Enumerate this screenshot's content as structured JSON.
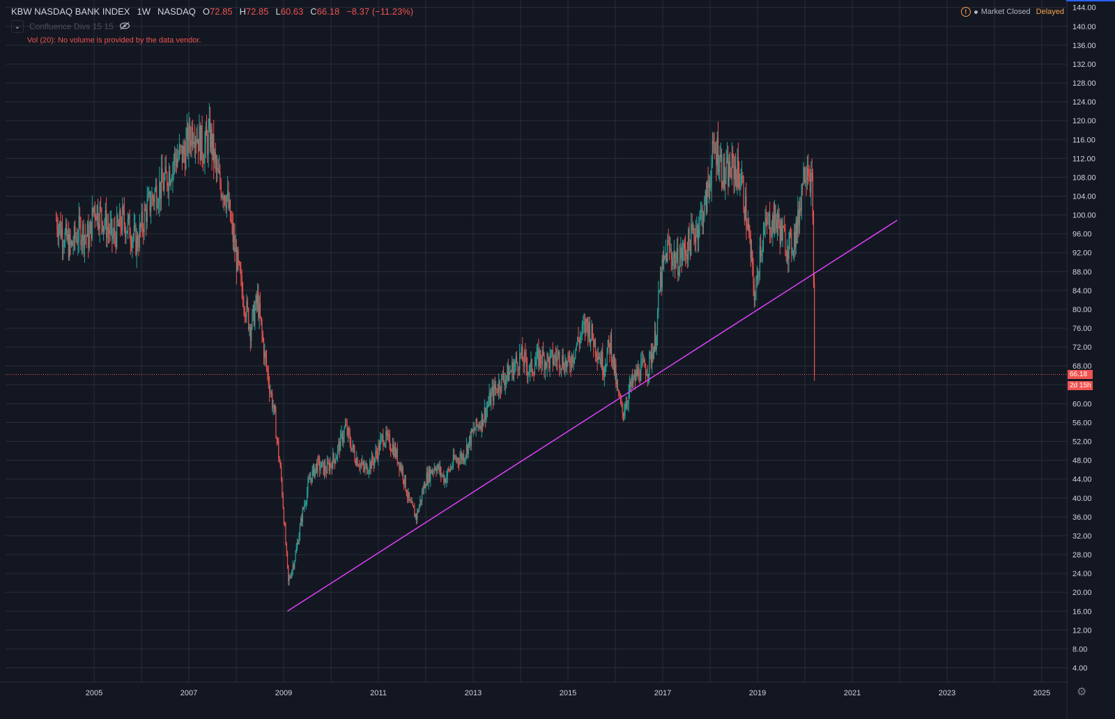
{
  "header": {
    "symbol": "KBW NASDAQ BANK INDEX",
    "interval": "1W",
    "exchange": "NASDAQ",
    "open_label": "O",
    "open": "72.85",
    "high_label": "H",
    "high": "72.85",
    "low_label": "L",
    "low": "60.63",
    "close_label": "C",
    "close": "66.18",
    "change": "−8.37 (−11.23%)"
  },
  "indicator": {
    "name": "Confluence Divs 15 15",
    "toggle_icon": "chevron-down-icon",
    "visibility_icon": "eye-off-icon"
  },
  "volume_message": "Vol (20): No volume is provided by the data vendor.",
  "market_status": {
    "warning_icon": "warning-icon",
    "status": "Market Closed",
    "delay": "Delayed"
  },
  "price_tag": {
    "value": "66.18",
    "countdown": "2d 15h"
  },
  "colors": {
    "background": "#131722",
    "grid": "#2a2e39",
    "up": "#26a69a",
    "down": "#ef5350",
    "trendline": "#e040fb",
    "text": "#d1d4dc"
  },
  "chart_data": {
    "type": "candlestick",
    "title": "KBW NASDAQ BANK INDEX",
    "timeframe": "1W",
    "x_ticks": [
      "2005",
      "2007",
      "2009",
      "2011",
      "2013",
      "2015",
      "2017",
      "2019",
      "2021",
      "2023",
      "2025"
    ],
    "y_ticks": [
      "4.00",
      "8.00",
      "12.00",
      "16.00",
      "20.00",
      "24.00",
      "28.00",
      "32.00",
      "36.00",
      "40.00",
      "44.00",
      "48.00",
      "52.00",
      "56.00",
      "60.00",
      "64.00",
      "68.00",
      "72.00",
      "76.00",
      "80.00",
      "84.00",
      "88.00",
      "92.00",
      "96.00",
      "100.00",
      "104.00",
      "108.00",
      "112.00",
      "116.00",
      "120.00",
      "124.00",
      "128.00",
      "132.00",
      "136.00",
      "140.00",
      "144.00"
    ],
    "ylim": [
      0,
      145
    ],
    "xlim": [
      2004.0,
      2025.7
    ],
    "price_path": [
      [
        2004.2,
        99
      ],
      [
        2004.35,
        96
      ],
      [
        2004.5,
        93
      ],
      [
        2004.7,
        97
      ],
      [
        2004.9,
        95
      ],
      [
        2005.0,
        102
      ],
      [
        2005.2,
        99
      ],
      [
        2005.4,
        95
      ],
      [
        2005.6,
        99
      ],
      [
        2005.75,
        97
      ],
      [
        2005.9,
        94
      ],
      [
        2006.1,
        101
      ],
      [
        2006.3,
        105
      ],
      [
        2006.5,
        107
      ],
      [
        2006.7,
        112
      ],
      [
        2006.9,
        113
      ],
      [
        2007.1,
        119
      ],
      [
        2007.3,
        114
      ],
      [
        2007.45,
        117
      ],
      [
        2007.6,
        108
      ],
      [
        2007.8,
        104
      ],
      [
        2007.95,
        94
      ],
      [
        2008.1,
        85
      ],
      [
        2008.3,
        76
      ],
      [
        2008.45,
        82
      ],
      [
        2008.6,
        70
      ],
      [
        2008.8,
        58
      ],
      [
        2008.95,
        44
      ],
      [
        2009.1,
        22
      ],
      [
        2009.25,
        28
      ],
      [
        2009.4,
        37
      ],
      [
        2009.55,
        44
      ],
      [
        2009.7,
        47
      ],
      [
        2009.9,
        46
      ],
      [
        2010.1,
        49
      ],
      [
        2010.3,
        55
      ],
      [
        2010.5,
        49
      ],
      [
        2010.7,
        46
      ],
      [
        2010.9,
        48
      ],
      [
        2011.1,
        53
      ],
      [
        2011.3,
        51
      ],
      [
        2011.5,
        46
      ],
      [
        2011.65,
        39
      ],
      [
        2011.8,
        36
      ],
      [
        2012.0,
        44
      ],
      [
        2012.2,
        47
      ],
      [
        2012.4,
        44
      ],
      [
        2012.6,
        48
      ],
      [
        2012.8,
        49
      ],
      [
        2013.0,
        54
      ],
      [
        2013.2,
        57
      ],
      [
        2013.4,
        62
      ],
      [
        2013.6,
        65
      ],
      [
        2013.8,
        67
      ],
      [
        2014.0,
        70
      ],
      [
        2014.2,
        67
      ],
      [
        2014.4,
        70
      ],
      [
        2014.6,
        69
      ],
      [
        2014.8,
        70
      ],
      [
        2015.0,
        68
      ],
      [
        2015.2,
        73
      ],
      [
        2015.4,
        77
      ],
      [
        2015.6,
        72
      ],
      [
        2015.75,
        68
      ],
      [
        2015.9,
        73
      ],
      [
        2016.05,
        62
      ],
      [
        2016.15,
        58
      ],
      [
        2016.3,
        63
      ],
      [
        2016.5,
        67
      ],
      [
        2016.7,
        68
      ],
      [
        2016.85,
        74
      ],
      [
        2016.95,
        86
      ],
      [
        2017.1,
        93
      ],
      [
        2017.3,
        90
      ],
      [
        2017.5,
        93
      ],
      [
        2017.7,
        97
      ],
      [
        2017.9,
        102
      ],
      [
        2018.05,
        112
      ],
      [
        2018.15,
        114
      ],
      [
        2018.3,
        108
      ],
      [
        2018.5,
        110
      ],
      [
        2018.65,
        108
      ],
      [
        2018.8,
        97
      ],
      [
        2018.95,
        82
      ],
      [
        2019.05,
        93
      ],
      [
        2019.2,
        98
      ],
      [
        2019.4,
        99
      ],
      [
        2019.55,
        95
      ],
      [
        2019.7,
        93
      ],
      [
        2019.85,
        98
      ],
      [
        2019.95,
        108
      ],
      [
        2020.05,
        112
      ],
      [
        2020.15,
        106
      ],
      [
        2020.2,
        80
      ],
      [
        2020.22,
        66.18
      ]
    ],
    "trendline": {
      "start": [
        2009.08,
        16.0
      ],
      "end": [
        2021.95,
        98.9
      ]
    },
    "last_price": 66.18,
    "legend": "none"
  }
}
